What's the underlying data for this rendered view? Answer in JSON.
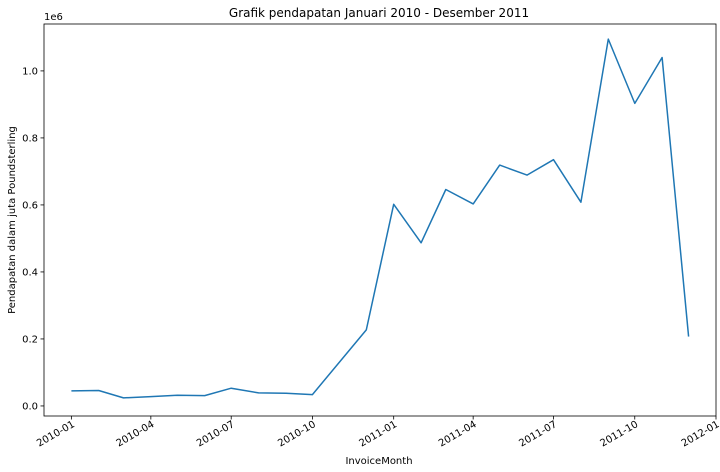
{
  "chart_data": {
    "type": "line",
    "title": "Grafik pendapatan Januari 2010 - Desember 2011",
    "xlabel": "InvoiceMonth",
    "ylabel": "Pendapatan dalam juta Poundsterling",
    "y_offset_label": "1e6",
    "xlim": [
      "2009-12-01",
      "2012-01-01"
    ],
    "ylim": [
      -0.03,
      1.14
    ],
    "x_ticks": [
      "2010-01",
      "2010-04",
      "2010-07",
      "2010-10",
      "2011-01",
      "2011-04",
      "2011-07",
      "2011-10",
      "2012-01"
    ],
    "y_ticks": [
      "0.0",
      "0.2",
      "0.4",
      "0.6",
      "0.8",
      "1.0"
    ],
    "y_tick_values": [
      0.0,
      0.2,
      0.4,
      0.6,
      0.8,
      1.0
    ],
    "grid": false,
    "color": "#1f77b4",
    "series": [
      {
        "x": [
          "2010-01-01",
          "2010-02-01",
          "2010-03-01",
          "2010-04-01",
          "2010-05-01",
          "2010-06-01",
          "2010-07-01",
          "2010-08-01",
          "2010-09-01",
          "2010-10-01",
          "2010-12-01",
          "2011-01-01",
          "2011-02-01",
          "2011-03-01",
          "2011-04-01",
          "2011-05-01",
          "2011-06-01",
          "2011-07-01",
          "2011-08-01",
          "2011-09-01",
          "2011-10-01",
          "2011-11-01",
          "2011-12-01"
        ],
        "values": [
          0.045,
          0.046,
          0.024,
          0.028,
          0.032,
          0.031,
          0.053,
          0.039,
          0.038,
          0.034,
          0.227,
          0.602,
          0.487,
          0.646,
          0.603,
          0.719,
          0.689,
          0.735,
          0.608,
          1.095,
          0.903,
          1.04,
          0.207
        ]
      }
    ]
  }
}
